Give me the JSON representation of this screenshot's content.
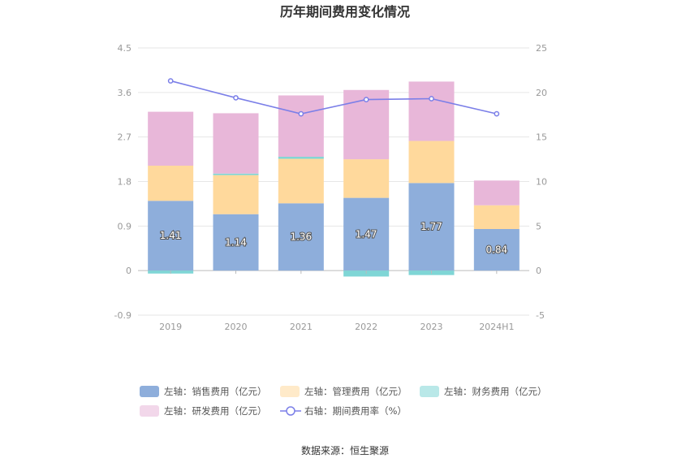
{
  "chart_data": {
    "type": "bar",
    "title": "历年期间费用变化情况",
    "categories": [
      "2019",
      "2020",
      "2021",
      "2022",
      "2023",
      "2024H1"
    ],
    "left_axis": {
      "min": -0.9,
      "max": 4.5,
      "ticks": [
        "4.5",
        "3.6",
        "2.7",
        "1.8",
        "0.9",
        "0",
        "-0.9"
      ]
    },
    "right_axis": {
      "min": -5,
      "max": 25,
      "ticks": [
        "25",
        "20",
        "15",
        "10",
        "5",
        "0",
        "-5"
      ]
    },
    "series": [
      {
        "name": "左轴：销售费用（亿元）",
        "axis": "left",
        "stack": "cost",
        "color": "#8eaedb",
        "values": [
          1.41,
          1.14,
          1.36,
          1.47,
          1.77,
          0.84
        ],
        "labels": [
          "1.41",
          "1.14",
          "1.36",
          "1.47",
          "1.77",
          "0.84"
        ]
      },
      {
        "name": "左轴：管理费用（亿元）",
        "axis": "left",
        "stack": "cost",
        "color": "#ffd99c",
        "values": [
          0.71,
          0.79,
          0.9,
          0.78,
          0.85,
          0.48
        ]
      },
      {
        "name": "左轴：财务费用（亿元）",
        "axis": "left",
        "stack": "cost",
        "color": "#7fd6d6",
        "values": [
          -0.06,
          0.03,
          0.04,
          -0.12,
          -0.09,
          0.0
        ]
      },
      {
        "name": "左轴：研发费用（亿元）",
        "axis": "left",
        "stack": "cost",
        "color": "#e8b7d9",
        "values": [
          1.09,
          1.22,
          1.24,
          1.4,
          1.2,
          0.5
        ]
      },
      {
        "name": "右轴：期间费用率（%）",
        "axis": "right",
        "type": "line",
        "color": "#7b7fe8",
        "values": [
          21.3,
          19.4,
          17.6,
          19.2,
          19.3,
          17.6
        ]
      }
    ],
    "legend": {
      "position": "bottom"
    },
    "grid": true
  },
  "source": "数据来源：恒生聚源"
}
